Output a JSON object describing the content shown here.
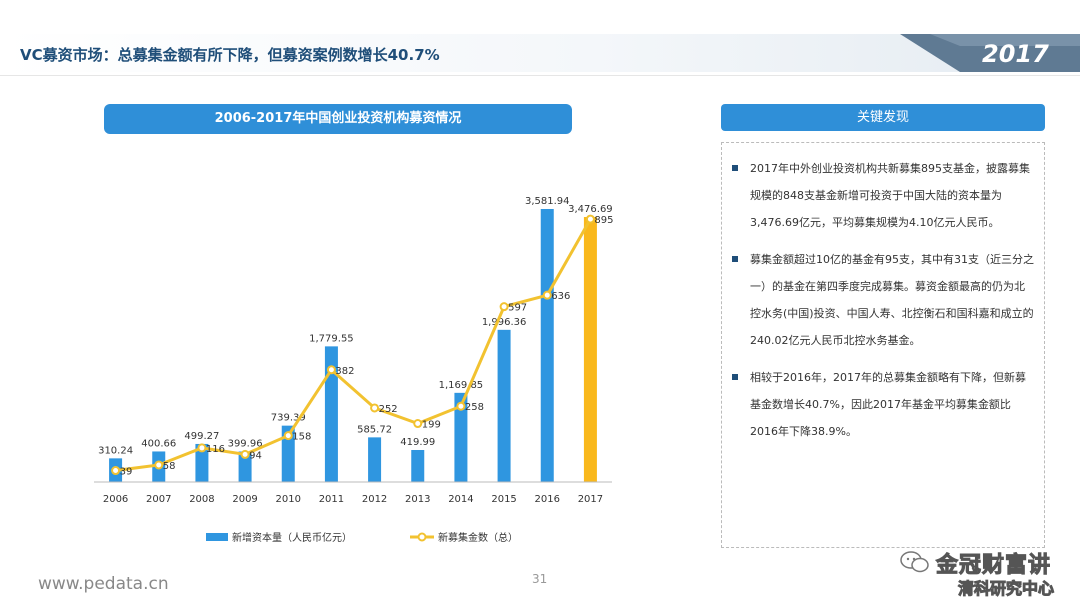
{
  "header": {
    "title": "VC募资市场：总募集金额有所下降，但募资案例数增长40.7%",
    "year_badge": "2017"
  },
  "chart_title": "2006-2017年中国创业投资机构募资情况",
  "findings": {
    "title": "关键发现",
    "items": [
      "2017年中外创业投资机构共新募集895支基金，披露募集规模的848支基金新增可投资于中国大陆的资本量为3,476.69亿元，平均募集规模为4.10亿元人民币。",
      "募集金额超过10亿的基金有95支，其中有31支（近三分之一）的基金在第四季度完成募集。募资金额最高的仍为北控水务(中国)投资、中国人寿、北控衡石和国科嘉和成立的240.02亿元人民币北控水务基金。",
      "相较于2016年，2017年的总募集金额略有下降，但新募基金数增长40.7%，因此2017年基金平均募集金额比2016年下降38.9%。"
    ]
  },
  "chart_data": {
    "type": "bar",
    "categories": [
      "2006",
      "2007",
      "2008",
      "2009",
      "2010",
      "2011",
      "2012",
      "2013",
      "2014",
      "2015",
      "2016",
      "2017"
    ],
    "series": [
      {
        "name": "新增资本量（人民币亿元）",
        "kind": "bar",
        "values": [
          310.24,
          400.66,
          499.27,
          399.96,
          739.39,
          1779.55,
          585.72,
          419.99,
          1169.85,
          1996.36,
          3581.94,
          3476.69
        ],
        "labels": [
          "310.24",
          "400.66",
          "499.27",
          "399.96",
          "739.39",
          "1,779.55",
          "585.72",
          "419.99",
          "1,169.85",
          "1,996.36",
          "3,581.94",
          "3,476.69"
        ],
        "color": "#2f96e0",
        "highlight_color": "#f9b81c"
      },
      {
        "name": "新募集金数（总）",
        "kind": "line",
        "values": [
          39,
          58,
          116,
          94,
          158,
          382,
          252,
          199,
          258,
          597,
          636,
          895
        ],
        "color": "#f2c230"
      }
    ],
    "ylim_bar": [
      0,
      3700
    ],
    "ylim_line": [
      0,
      960
    ],
    "legend_position": "bottom",
    "grid": false
  },
  "footer": {
    "url": "www.pedata.cn",
    "page": "31"
  },
  "watermark": {
    "line1": "金冠财富讲",
    "line2": "清科研究中心"
  },
  "colors": {
    "primary": "#2f8fd8",
    "title": "#1f4e79"
  }
}
